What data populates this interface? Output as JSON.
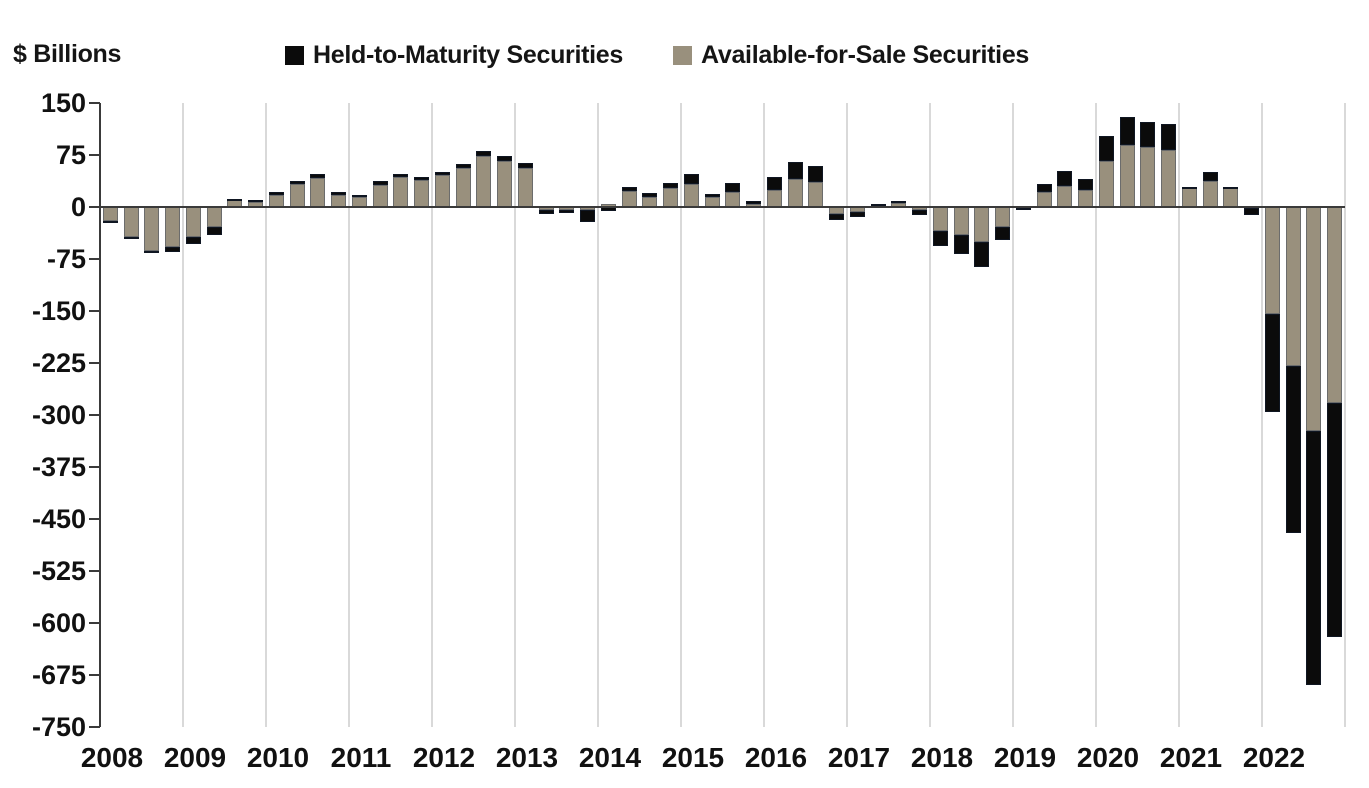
{
  "header": {
    "units_label": "$ Billions"
  },
  "legend": [
    {
      "label": "Held-to-Maturity Securities",
      "color": "#0b0b0b"
    },
    {
      "label": "Available-for-Sale Securities",
      "color": "#99907d"
    }
  ],
  "chart_data": {
    "type": "bar",
    "subtype": "stacked-quarterly",
    "title": "",
    "xlabel": "",
    "ylabel": "$ Billions",
    "ylim": [
      -750,
      150
    ],
    "yticks": [
      150,
      75,
      0,
      -75,
      -150,
      -225,
      -300,
      -375,
      -450,
      -525,
      -600,
      -675,
      -750
    ],
    "grid": "vertical-year-separators",
    "legend_position": "top",
    "categories": [
      "2008",
      "2009",
      "2010",
      "2011",
      "2012",
      "2013",
      "2014",
      "2015",
      "2016",
      "2017",
      "2018",
      "2019",
      "2020",
      "2021",
      "2022"
    ],
    "bars_per_year": 4,
    "series": [
      {
        "name": "Available-for-Sale Securities",
        "color": "#99907d",
        "values": [
          -20,
          -43,
          -64,
          -58,
          -43,
          -29,
          11,
          7,
          18,
          33,
          42,
          17,
          15,
          32,
          43,
          39,
          46,
          56,
          73,
          66,
          56,
          -5,
          -4,
          -5,
          4,
          23,
          15,
          27,
          33,
          14,
          21,
          5,
          25,
          40,
          36,
          -10,
          -7,
          3,
          6,
          -5,
          -34,
          -40,
          -51,
          -29,
          -2,
          21,
          30,
          25,
          66,
          90,
          87,
          82,
          27,
          37,
          27,
          -2,
          -155,
          -229,
          -323,
          -282
        ]
      },
      {
        "name": "Held-to-Maturity Securities",
        "color": "#0b0b0b",
        "values": [
          -1,
          -2,
          -3,
          -7,
          -11,
          -11,
          1,
          3,
          4,
          5,
          6,
          4,
          3,
          5,
          5,
          4,
          5,
          6,
          8,
          8,
          7,
          -5,
          -4,
          -16,
          -6,
          6,
          5,
          8,
          15,
          5,
          13,
          4,
          18,
          25,
          23,
          -9,
          -7,
          1,
          2,
          -7,
          -22,
          -28,
          -35,
          -19,
          -3,
          12,
          22,
          16,
          37,
          40,
          36,
          37,
          2,
          14,
          2,
          -9,
          -140,
          -241,
          -367,
          -338
        ]
      }
    ]
  }
}
